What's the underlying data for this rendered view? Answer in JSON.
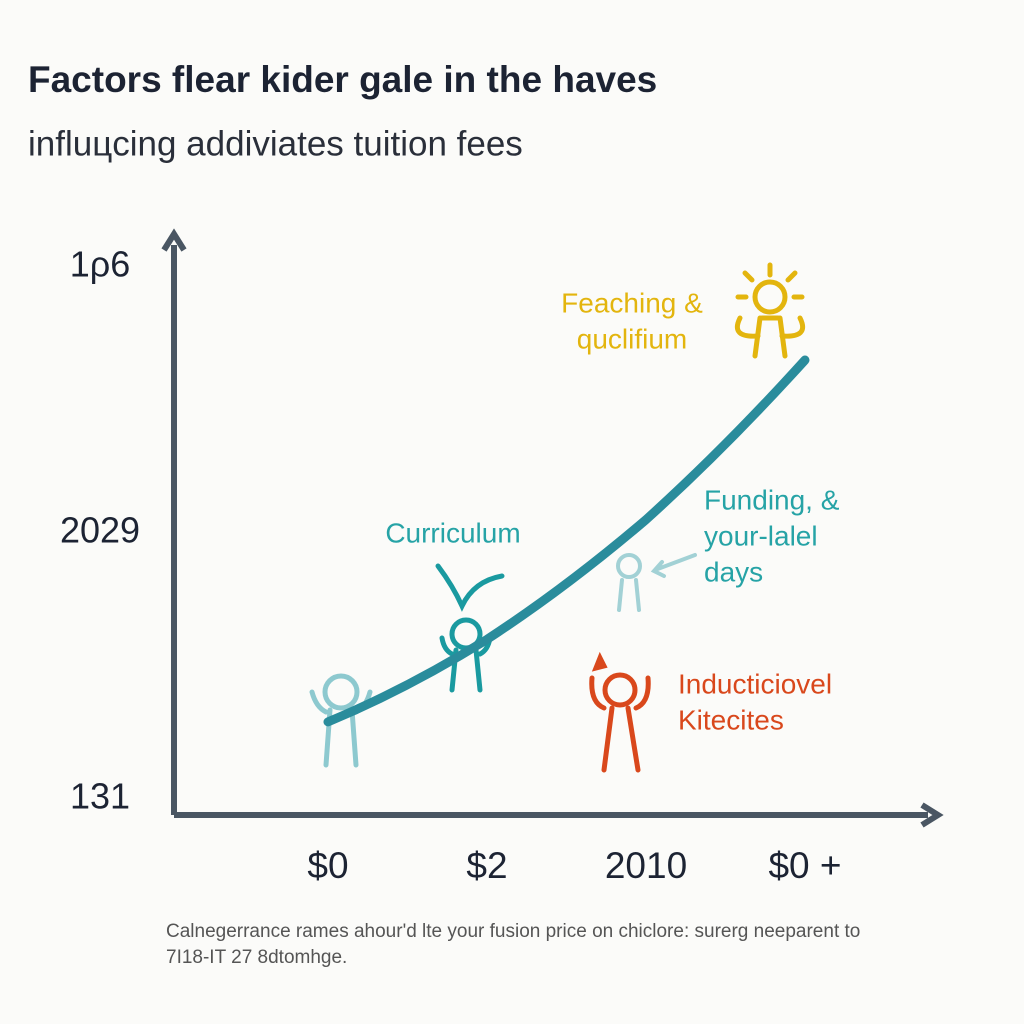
{
  "chart_data": {
    "type": "line",
    "title": "Factors flear kider gale in the haves",
    "subtitle": "influцcing addiviates tuition fees",
    "categories": [
      "$0",
      "$2",
      "2010",
      "$0 +"
    ],
    "values": [
      0.29,
      0.6,
      1.05,
      1.65
    ],
    "color": "#2a8c9c",
    "ylim": [
      -0.06,
      2.12
    ],
    "yticks": [
      {
        "value": 0,
        "label": "131"
      },
      {
        "value": 1,
        "label": "2029"
      },
      {
        "value": 2,
        "label": "1ρ6"
      }
    ],
    "annotations": [
      {
        "lines": [
          "Feaching &",
          "quclifium"
        ],
        "color": "#e3b50e"
      },
      {
        "lines": [
          "Curriculum"
        ],
        "color": "#26a3a6"
      },
      {
        "lines": [
          "Funding, &",
          "your-lalel",
          "days"
        ],
        "color": "#26a3a6"
      },
      {
        "lines": [
          "Inducticiovel",
          "Kitecites"
        ],
        "color": "#d9481c"
      }
    ],
    "footnote": [
      "Calnegerrance rames ahour'd lte your fusion price on chiclore: surerg neeparent to",
      "7I18-IT 27 8dtomhge."
    ]
  }
}
